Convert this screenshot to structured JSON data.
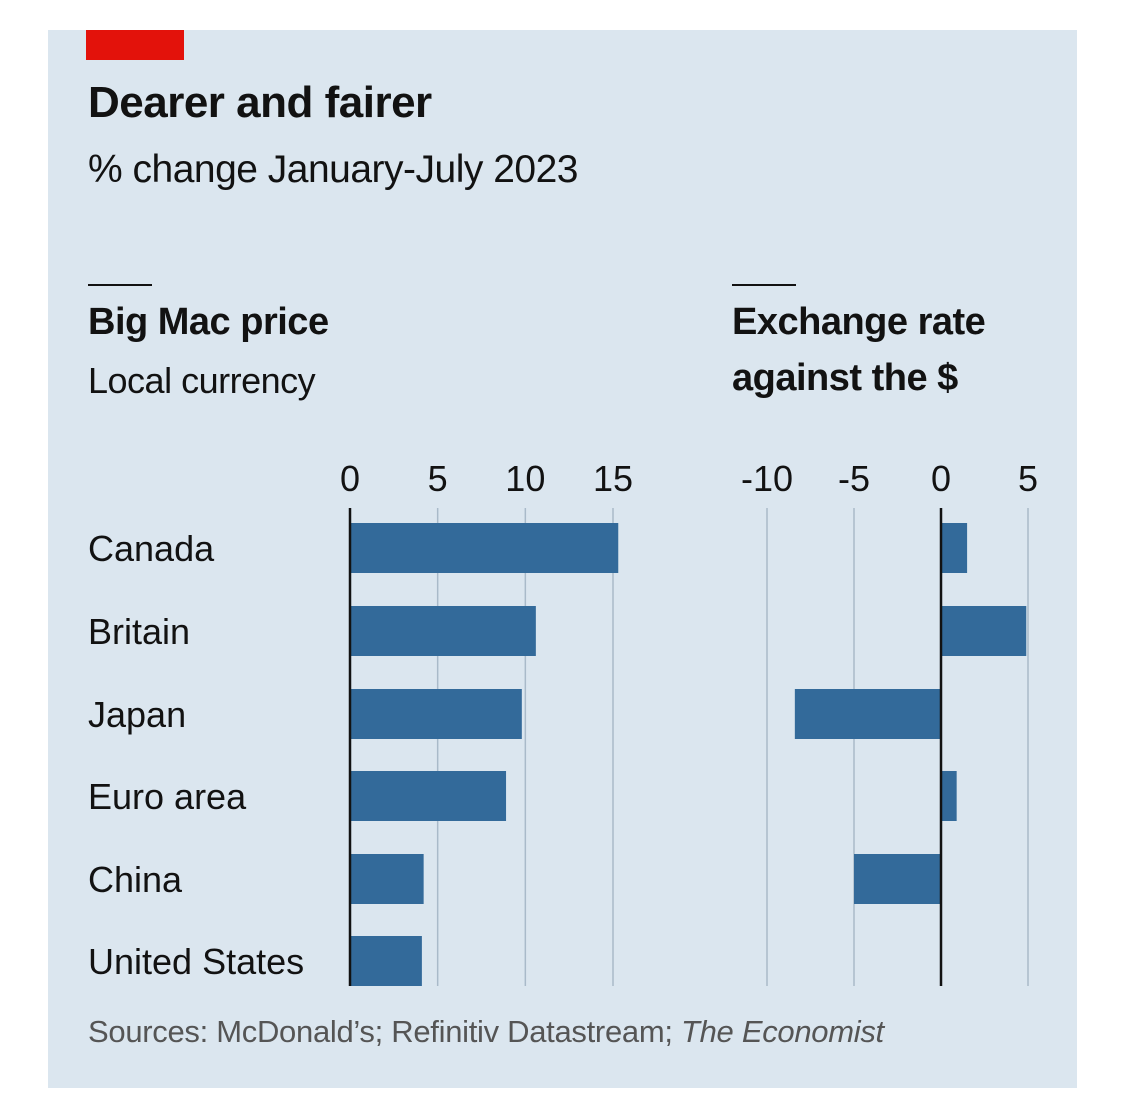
{
  "header": {
    "title": "Dearer and fairer",
    "subtitle": "% change January-July 2023"
  },
  "colors": {
    "bar": "#336a9a",
    "background": "#dbe6ef",
    "accent": "#e3120b"
  },
  "chart_data": [
    {
      "type": "bar",
      "orientation": "horizontal",
      "title": "Big Mac price",
      "subtitle": "Local currency",
      "categories": [
        "Canada",
        "Britain",
        "Japan",
        "Euro area",
        "China",
        "United States"
      ],
      "values": [
        15.3,
        10.6,
        9.8,
        8.9,
        4.2,
        4.1
      ],
      "xlim": [
        0,
        17
      ],
      "ticks": [
        "0",
        "5",
        "10",
        "15"
      ],
      "tick_values": [
        0,
        5,
        10,
        15
      ],
      "grid": true
    },
    {
      "type": "bar",
      "orientation": "horizontal",
      "title_lines": [
        "Exchange rate",
        "against the $"
      ],
      "categories": [
        "Canada",
        "Britain",
        "Japan",
        "Euro area",
        "China",
        "United States"
      ],
      "values": [
        1.5,
        4.9,
        -8.4,
        0.9,
        -5.0,
        null
      ],
      "xlim": [
        -12,
        6
      ],
      "ticks": [
        "-10",
        "-5",
        "0",
        "5"
      ],
      "tick_values": [
        -10,
        -5,
        0,
        5
      ],
      "grid": true
    }
  ],
  "source": {
    "text": "Sources: McDonald’s; Refinitiv Datastream; ",
    "publication": "The Economist"
  }
}
